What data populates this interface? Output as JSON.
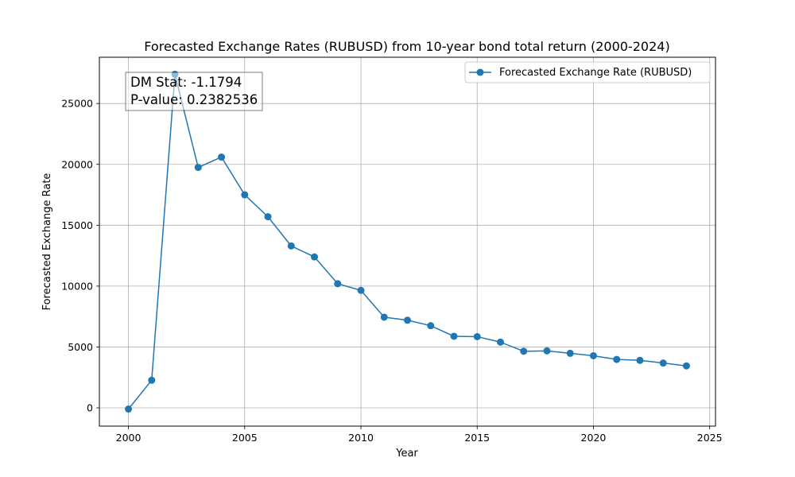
{
  "chart_data": {
    "type": "line",
    "title": "Forecasted Exchange Rates (RUBUSD) from 10-year bond total return (2000-2024)",
    "xlabel": "Year",
    "ylabel": "Forecasted Exchange Rate",
    "xlim": [
      1998.75,
      2025.25
    ],
    "ylim": [
      -1500,
      28800
    ],
    "xticks": [
      2000,
      2005,
      2010,
      2015,
      2020,
      2025
    ],
    "yticks": [
      0,
      5000,
      10000,
      15000,
      20000,
      25000
    ],
    "grid": true,
    "legend_position": "top-right",
    "color": "#1f77b4",
    "series": [
      {
        "name": "Forecasted Exchange Rate (RUBUSD)",
        "x": [
          2000,
          2001,
          2002,
          2003,
          2004,
          2005,
          2006,
          2007,
          2008,
          2009,
          2010,
          2011,
          2012,
          2013,
          2014,
          2015,
          2016,
          2017,
          2018,
          2019,
          2020,
          2021,
          2022,
          2023,
          2024
        ],
        "y": [
          -100,
          2270,
          27400,
          19750,
          20600,
          17500,
          15700,
          13300,
          12400,
          10200,
          9650,
          7450,
          7200,
          6750,
          5880,
          5850,
          5400,
          4650,
          4680,
          4480,
          4280,
          3980,
          3900,
          3680,
          3450
        ],
        "marker": "circle"
      }
    ],
    "annotation": {
      "line1": "DM Stat: -1.1794",
      "line2": "P-value: 0.2382536"
    }
  }
}
